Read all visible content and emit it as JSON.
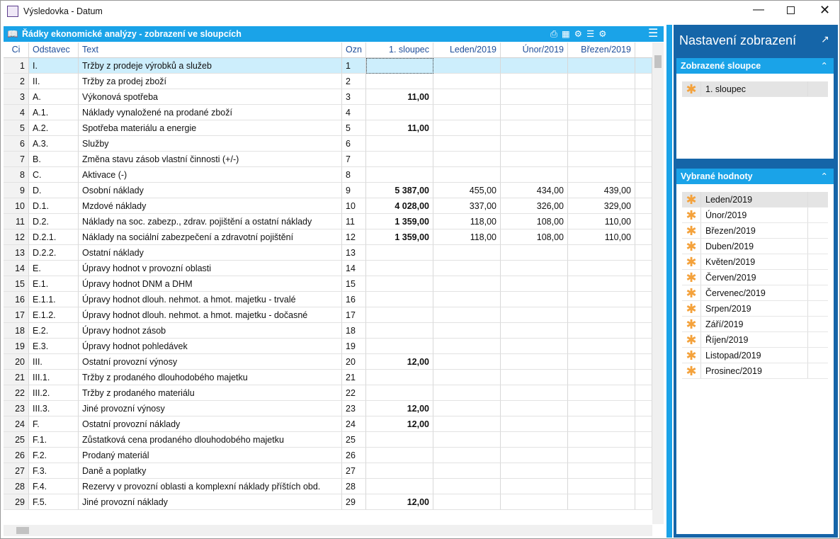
{
  "window": {
    "title": "Výsledovka - Datum"
  },
  "panel": {
    "title": "Řádky ekonomické analýzy - zobrazení ve sloupcích"
  },
  "table": {
    "headers": [
      "Ci",
      "Odstavec",
      "Text",
      "Ozn",
      "1. sloupec",
      "Leden/2019",
      "Únor/2019",
      "Březen/2019"
    ],
    "rows": [
      [
        "1",
        "I.",
        "Tržby z prodeje výrobků a služeb",
        "1",
        null,
        null,
        null,
        null
      ],
      [
        "2",
        "II.",
        "Tržby za prodej zboží",
        "2",
        null,
        null,
        null,
        null
      ],
      [
        "3",
        "A.",
        "Výkonová spotřeba",
        "3",
        "11,00",
        null,
        null,
        null
      ],
      [
        "4",
        "A.1.",
        "Náklady vynaložené na prodané zboží",
        "4",
        null,
        null,
        null,
        null
      ],
      [
        "5",
        "A.2.",
        "Spotřeba materiálu a energie",
        "5",
        "11,00",
        null,
        null,
        null
      ],
      [
        "6",
        "A.3.",
        "Služby",
        "6",
        null,
        null,
        null,
        null
      ],
      [
        "7",
        "B.",
        "Změna stavu zásob vlastní činnosti (+/-)",
        "7",
        null,
        null,
        null,
        null
      ],
      [
        "8",
        "C.",
        "Aktivace (-)",
        "8",
        null,
        null,
        null,
        null
      ],
      [
        "9",
        "D.",
        "Osobní náklady",
        "9",
        "5 387,00",
        "455,00",
        "434,00",
        "439,00"
      ],
      [
        "10",
        "D.1.",
        "Mzdové náklady",
        "10",
        "4 028,00",
        "337,00",
        "326,00",
        "329,00"
      ],
      [
        "11",
        "D.2.",
        "Náklady na soc. zabezp., zdrav. pojištění a ostatní náklady",
        "11",
        "1 359,00",
        "118,00",
        "108,00",
        "110,00"
      ],
      [
        "12",
        "D.2.1.",
        "Náklady na sociální zabezpečení a zdravotní pojištění",
        "12",
        "1 359,00",
        "118,00",
        "108,00",
        "110,00"
      ],
      [
        "13",
        "D.2.2.",
        "Ostatní náklady",
        "13",
        null,
        null,
        null,
        null
      ],
      [
        "14",
        "E.",
        "Úpravy hodnot v provozní oblasti",
        "14",
        null,
        null,
        null,
        null
      ],
      [
        "15",
        "E.1.",
        "Úpravy hodnot DNM a DHM",
        "15",
        null,
        null,
        null,
        null
      ],
      [
        "16",
        "E.1.1.",
        "Úpravy hodnot dlouh. nehmot. a hmot. majetku - trvalé",
        "16",
        null,
        null,
        null,
        null
      ],
      [
        "17",
        "E.1.2.",
        "Úpravy hodnot dlouh. nehmot. a hmot. majetku - dočasné",
        "17",
        null,
        null,
        null,
        null
      ],
      [
        "18",
        "E.2.",
        "Úpravy hodnot zásob",
        "18",
        null,
        null,
        null,
        null
      ],
      [
        "19",
        "E.3.",
        "Úpravy hodnot pohledávek",
        "19",
        null,
        null,
        null,
        null
      ],
      [
        "20",
        "III.",
        "Ostatní provozní výnosy",
        "20",
        "12,00",
        null,
        null,
        null
      ],
      [
        "21",
        "III.1.",
        "Tržby z prodaného dlouhodobého majetku",
        "21",
        null,
        null,
        null,
        null
      ],
      [
        "22",
        "III.2.",
        "Tržby z prodaného materiálu",
        "22",
        null,
        null,
        null,
        null
      ],
      [
        "23",
        "III.3.",
        "Jiné provozní výnosy",
        "23",
        "12,00",
        null,
        null,
        null
      ],
      [
        "24",
        "F.",
        "Ostatní provozní náklady",
        "24",
        "12,00",
        null,
        null,
        null
      ],
      [
        "25",
        "F.1.",
        "Zůstatková cena prodaného dlouhodobého majetku",
        "25",
        null,
        null,
        null,
        null
      ],
      [
        "26",
        "F.2.",
        "Prodaný materiál",
        "26",
        null,
        null,
        null,
        null
      ],
      [
        "27",
        "F.3.",
        "Daně a poplatky",
        "27",
        null,
        null,
        null,
        null
      ],
      [
        "28",
        "F.4.",
        "Rezervy v provozní oblasti a komplexní náklady příštích obd.",
        "28",
        null,
        null,
        null,
        null
      ],
      [
        "29",
        "F.5.",
        "Jiné provozní náklady",
        "29",
        "12,00",
        null,
        null,
        null
      ]
    ]
  },
  "sidebar": {
    "title": "Nastavení zobrazení",
    "sections": [
      {
        "title": "Zobrazené sloupce",
        "items": [
          "1. sloupec"
        ]
      },
      {
        "title": "Vybrané hodnoty",
        "items": [
          "Leden/2019",
          "Únor/2019",
          "Březen/2019",
          "Duben/2019",
          "Květen/2019",
          "Červen/2019",
          "Červenec/2019",
          "Srpen/2019",
          "Září/2019",
          "Říjen/2019",
          "Listopad/2019",
          "Prosinec/2019"
        ]
      }
    ]
  }
}
